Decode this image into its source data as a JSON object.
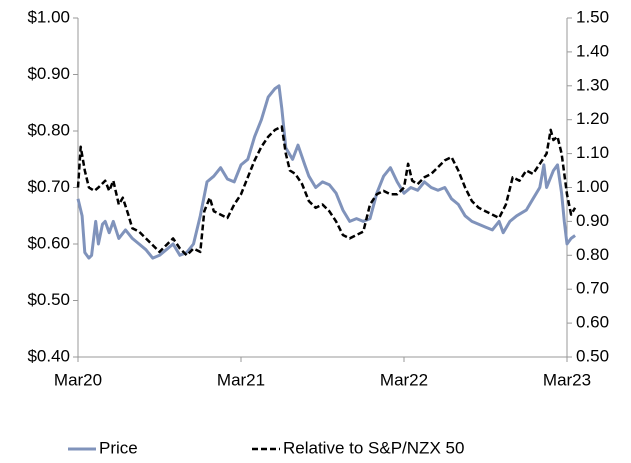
{
  "chart_data": {
    "type": "line",
    "xlim": [
      0,
      36
    ],
    "xticks": [
      {
        "value": 0,
        "label": "Mar20"
      },
      {
        "value": 12,
        "label": "Mar21"
      },
      {
        "value": 24,
        "label": "Mar22"
      },
      {
        "value": 36,
        "label": "Mar23"
      }
    ],
    "ylim": [
      0.4,
      1.0
    ],
    "yticks": [
      {
        "value": 0.4,
        "label": "$0.40"
      },
      {
        "value": 0.5,
        "label": "$0.50"
      },
      {
        "value": 0.6,
        "label": "$0.60"
      },
      {
        "value": 0.7,
        "label": "$0.70"
      },
      {
        "value": 0.8,
        "label": "$0.80"
      },
      {
        "value": 0.9,
        "label": "$0.90"
      },
      {
        "value": 1.0,
        "label": "$1.00"
      }
    ],
    "y2lim": [
      0.5,
      1.5
    ],
    "y2ticks": [
      {
        "value": 0.5,
        "label": "0.50"
      },
      {
        "value": 0.6,
        "label": "0.60"
      },
      {
        "value": 0.7,
        "label": "0.70"
      },
      {
        "value": 0.8,
        "label": "0.80"
      },
      {
        "value": 0.9,
        "label": "0.90"
      },
      {
        "value": 1.0,
        "label": "1.00"
      },
      {
        "value": 1.1,
        "label": "1.10"
      },
      {
        "value": 1.2,
        "label": "1.20"
      },
      {
        "value": 1.3,
        "label": "1.30"
      },
      {
        "value": 1.4,
        "label": "1.40"
      },
      {
        "value": 1.5,
        "label": "1.50"
      }
    ],
    "series": [
      {
        "name": "Price",
        "color": "#8093bb",
        "dash": false,
        "x": [
          0,
          0.3,
          0.5,
          0.8,
          1,
          1.3,
          1.5,
          1.8,
          2,
          2.3,
          2.6,
          3,
          3.5,
          4,
          4.5,
          5,
          5.5,
          6,
          6.5,
          7,
          7.5,
          8,
          8.5,
          9,
          9.5,
          10,
          10.5,
          11,
          11.5,
          12,
          12.5,
          13,
          13.5,
          14,
          14.5,
          14.8,
          15,
          15.3,
          15.8,
          16.2,
          16.7,
          17,
          17.5,
          18,
          18.5,
          19,
          19.5,
          20,
          20.5,
          21,
          21.5,
          22,
          22.5,
          23,
          23.5,
          24,
          24.5,
          25,
          25.5,
          26,
          26.5,
          27,
          27.5,
          28,
          28.5,
          29,
          29.5,
          30,
          30.5,
          31,
          31.3,
          31.8,
          32.3,
          33,
          33.5,
          34,
          34.3,
          34.5,
          35,
          35.3,
          35.6,
          35.8,
          36,
          36.3,
          36.6
        ],
        "values": [
          0.68,
          0.65,
          0.585,
          0.575,
          0.58,
          0.64,
          0.6,
          0.635,
          0.64,
          0.62,
          0.64,
          0.61,
          0.625,
          0.61,
          0.6,
          0.59,
          0.575,
          0.58,
          0.59,
          0.6,
          0.58,
          0.585,
          0.6,
          0.65,
          0.71,
          0.72,
          0.735,
          0.715,
          0.71,
          0.74,
          0.75,
          0.79,
          0.82,
          0.86,
          0.875,
          0.88,
          0.84,
          0.77,
          0.75,
          0.775,
          0.74,
          0.72,
          0.7,
          0.71,
          0.705,
          0.69,
          0.66,
          0.64,
          0.645,
          0.64,
          0.645,
          0.69,
          0.72,
          0.735,
          0.71,
          0.69,
          0.7,
          0.695,
          0.71,
          0.7,
          0.695,
          0.7,
          0.68,
          0.67,
          0.65,
          0.64,
          0.635,
          0.63,
          0.625,
          0.64,
          0.62,
          0.64,
          0.65,
          0.66,
          0.68,
          0.7,
          0.74,
          0.7,
          0.73,
          0.74,
          0.69,
          0.64,
          0.6,
          0.61,
          0.615
        ]
      },
      {
        "name": "Relative to S&P/NZX 50",
        "color": "#000000",
        "dash": true,
        "axis": "y2",
        "x": [
          0,
          0.2,
          0.5,
          0.8,
          1.2,
          1.5,
          2,
          2.3,
          2.6,
          3,
          3.3,
          3.7,
          4,
          4.5,
          5,
          5.5,
          6,
          6.5,
          7,
          7.5,
          8,
          8.5,
          9,
          9.3,
          9.7,
          10,
          10.5,
          11,
          11.5,
          12,
          12.5,
          13,
          13.5,
          14,
          14.5,
          15,
          15.3,
          15.6,
          16,
          16.5,
          17,
          17.5,
          18,
          18.5,
          19,
          19.5,
          20,
          20.5,
          21,
          21.5,
          22,
          22.5,
          23,
          23.5,
          24,
          24.3,
          24.6,
          25,
          25.5,
          26,
          26.5,
          27,
          27.5,
          28,
          28.5,
          29,
          29.5,
          30,
          30.5,
          31,
          31.5,
          32,
          32.5,
          33,
          33.5,
          34,
          34.5,
          34.8,
          35,
          35.3,
          35.6,
          36,
          36.3,
          36.6
        ],
        "values": [
          1.0,
          1.12,
          1.05,
          1.0,
          0.99,
          1.0,
          1.02,
          0.99,
          1.02,
          0.95,
          0.97,
          0.92,
          0.88,
          0.87,
          0.85,
          0.83,
          0.81,
          0.83,
          0.85,
          0.82,
          0.8,
          0.82,
          0.81,
          0.93,
          0.97,
          0.93,
          0.92,
          0.91,
          0.95,
          0.98,
          1.03,
          1.08,
          1.12,
          1.15,
          1.17,
          1.18,
          1.1,
          1.05,
          1.04,
          1.01,
          0.96,
          0.94,
          0.95,
          0.93,
          0.9,
          0.86,
          0.85,
          0.86,
          0.87,
          0.95,
          0.98,
          0.99,
          0.98,
          0.98,
          1.0,
          1.07,
          1.02,
          1.01,
          1.03,
          1.04,
          1.06,
          1.08,
          1.09,
          1.05,
          1.0,
          0.96,
          0.94,
          0.93,
          0.92,
          0.91,
          0.95,
          1.03,
          1.02,
          1.05,
          1.04,
          1.07,
          1.1,
          1.17,
          1.14,
          1.15,
          1.1,
          0.98,
          0.92,
          0.94
        ]
      }
    ]
  }
}
